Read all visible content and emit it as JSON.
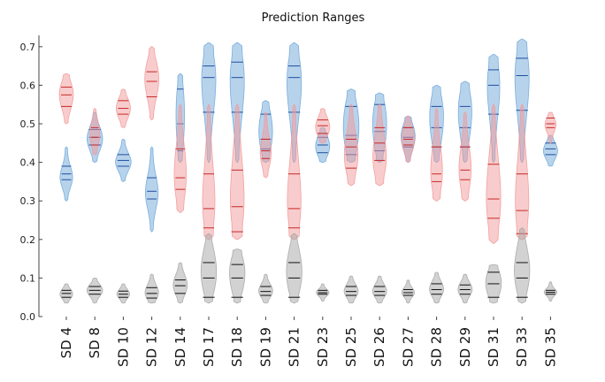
{
  "chart_data": {
    "type": "violin",
    "title": "Prediction Ranges",
    "xlabel": "",
    "ylabel": "",
    "ylim": [
      0,
      0.72
    ],
    "yticks": [
      "0.0",
      "0.1",
      "0.2",
      "0.3",
      "0.4",
      "0.5",
      "0.6",
      "0.7"
    ],
    "categories": [
      "SD 4",
      "SD 8",
      "SD 10",
      "SD 12",
      "SD 14",
      "SD 17",
      "SD 18",
      "SD 19",
      "SD 21",
      "SD 23",
      "SD 25",
      "SD 26",
      "SD 27",
      "SD 28",
      "SD 29",
      "SD 31",
      "SD 33",
      "SD 35"
    ],
    "series": [
      {
        "color": "#6fa8d9",
        "median_color": "#1f4e9e",
        "violins": [
          {
            "min": 0.3,
            "max": 0.44,
            "q1": 0.355,
            "median": 0.37,
            "q3": 0.39,
            "mode": 0.36,
            "width": 0.45
          },
          {
            "min": 0.4,
            "max": 0.53,
            "q1": 0.445,
            "median": 0.465,
            "q3": 0.485,
            "mode": 0.46,
            "width": 0.55
          },
          {
            "min": 0.35,
            "max": 0.46,
            "q1": 0.39,
            "median": 0.405,
            "q3": 0.42,
            "mode": 0.4,
            "width": 0.55
          },
          {
            "min": 0.22,
            "max": 0.44,
            "q1": 0.305,
            "median": 0.325,
            "q3": 0.36,
            "mode": 0.32,
            "width": 0.45
          },
          {
            "min": 0.4,
            "max": 0.63,
            "q1": 0.43,
            "median": 0.5,
            "q3": 0.59,
            "mode": 0.53,
            "width": 0.3
          },
          {
            "min": 0.4,
            "max": 0.71,
            "q1": 0.53,
            "median": 0.62,
            "q3": 0.65,
            "mode": 0.64,
            "width": 0.55
          },
          {
            "min": 0.4,
            "max": 0.71,
            "q1": 0.53,
            "median": 0.62,
            "q3": 0.66,
            "mode": 0.64,
            "width": 0.55
          },
          {
            "min": 0.4,
            "max": 0.56,
            "q1": 0.435,
            "median": 0.46,
            "q3": 0.525,
            "mode": 0.48,
            "width": 0.48
          },
          {
            "min": 0.4,
            "max": 0.71,
            "q1": 0.53,
            "median": 0.62,
            "q3": 0.65,
            "mode": 0.63,
            "width": 0.55
          },
          {
            "min": 0.4,
            "max": 0.49,
            "q1": 0.425,
            "median": 0.445,
            "q3": 0.465,
            "mode": 0.44,
            "width": 0.5
          },
          {
            "min": 0.4,
            "max": 0.59,
            "q1": 0.42,
            "median": 0.47,
            "q3": 0.545,
            "mode": 0.49,
            "width": 0.55
          },
          {
            "min": 0.4,
            "max": 0.58,
            "q1": 0.43,
            "median": 0.48,
            "q3": 0.55,
            "mode": 0.51,
            "width": 0.5
          },
          {
            "min": 0.4,
            "max": 0.52,
            "q1": 0.44,
            "median": 0.465,
            "q3": 0.49,
            "mode": 0.47,
            "width": 0.5
          },
          {
            "min": 0.4,
            "max": 0.6,
            "q1": 0.44,
            "median": 0.49,
            "q3": 0.545,
            "mode": 0.53,
            "width": 0.5
          },
          {
            "min": 0.4,
            "max": 0.61,
            "q1": 0.44,
            "median": 0.49,
            "q3": 0.545,
            "mode": 0.55,
            "width": 0.5
          },
          {
            "min": 0.4,
            "max": 0.68,
            "q1": 0.525,
            "median": 0.6,
            "q3": 0.64,
            "mode": 0.63,
            "width": 0.5
          },
          {
            "min": 0.4,
            "max": 0.72,
            "q1": 0.535,
            "median": 0.625,
            "q3": 0.67,
            "mode": 0.65,
            "width": 0.55
          },
          {
            "min": 0.39,
            "max": 0.47,
            "q1": 0.42,
            "median": 0.435,
            "q3": 0.45,
            "mode": 0.43,
            "width": 0.5
          }
        ]
      },
      {
        "color": "#f29a9a",
        "median_color": "#c62828",
        "violins": [
          {
            "min": 0.5,
            "max": 0.63,
            "q1": 0.545,
            "median": 0.575,
            "q3": 0.595,
            "mode": 0.58,
            "width": 0.5
          },
          {
            "min": 0.42,
            "max": 0.54,
            "q1": 0.445,
            "median": 0.465,
            "q3": 0.49,
            "mode": 0.47,
            "width": 0.35
          },
          {
            "min": 0.49,
            "max": 0.59,
            "q1": 0.525,
            "median": 0.54,
            "q3": 0.56,
            "mode": 0.54,
            "width": 0.5
          },
          {
            "min": 0.51,
            "max": 0.7,
            "q1": 0.57,
            "median": 0.61,
            "q3": 0.635,
            "mode": 0.62,
            "width": 0.5
          },
          {
            "min": 0.27,
            "max": 0.55,
            "q1": 0.33,
            "median": 0.36,
            "q3": 0.435,
            "mode": 0.35,
            "width": 0.45
          },
          {
            "min": 0.2,
            "max": 0.55,
            "q1": 0.23,
            "median": 0.28,
            "q3": 0.37,
            "mode": 0.26,
            "width": 0.5
          },
          {
            "min": 0.2,
            "max": 0.55,
            "q1": 0.22,
            "median": 0.285,
            "q3": 0.38,
            "mode": 0.26,
            "width": 0.55
          },
          {
            "min": 0.36,
            "max": 0.53,
            "q1": 0.41,
            "median": 0.43,
            "q3": 0.46,
            "mode": 0.42,
            "width": 0.4
          },
          {
            "min": 0.2,
            "max": 0.55,
            "q1": 0.23,
            "median": 0.28,
            "q3": 0.37,
            "mode": 0.26,
            "width": 0.55
          },
          {
            "min": 0.45,
            "max": 0.54,
            "q1": 0.475,
            "median": 0.495,
            "q3": 0.51,
            "mode": 0.49,
            "width": 0.5
          },
          {
            "min": 0.34,
            "max": 0.55,
            "q1": 0.385,
            "median": 0.44,
            "q3": 0.46,
            "mode": 0.41,
            "width": 0.5
          },
          {
            "min": 0.34,
            "max": 0.55,
            "q1": 0.405,
            "median": 0.45,
            "q3": 0.49,
            "mode": 0.4,
            "width": 0.5
          },
          {
            "min": 0.4,
            "max": 0.52,
            "q1": 0.445,
            "median": 0.46,
            "q3": 0.49,
            "mode": 0.46,
            "width": 0.45
          },
          {
            "min": 0.3,
            "max": 0.54,
            "q1": 0.35,
            "median": 0.37,
            "q3": 0.44,
            "mode": 0.36,
            "width": 0.45
          },
          {
            "min": 0.3,
            "max": 0.53,
            "q1": 0.355,
            "median": 0.38,
            "q3": 0.44,
            "mode": 0.37,
            "width": 0.45
          },
          {
            "min": 0.19,
            "max": 0.55,
            "q1": 0.255,
            "median": 0.305,
            "q3": 0.395,
            "mode": 0.28,
            "width": 0.55
          },
          {
            "min": 0.2,
            "max": 0.55,
            "q1": 0.215,
            "median": 0.275,
            "q3": 0.37,
            "mode": 0.25,
            "width": 0.55
          },
          {
            "min": 0.45,
            "max": 0.53,
            "q1": 0.49,
            "median": 0.5,
            "q3": 0.515,
            "mode": 0.5,
            "width": 0.4
          }
        ]
      },
      {
        "color": "#a6a6a6",
        "median_color": "#111111",
        "violins": [
          {
            "min": 0.035,
            "max": 0.085,
            "q1": 0.05,
            "median": 0.06,
            "q3": 0.068,
            "mode": 0.058,
            "width": 0.45
          },
          {
            "min": 0.035,
            "max": 0.1,
            "q1": 0.058,
            "median": 0.068,
            "q3": 0.078,
            "mode": 0.068,
            "width": 0.55
          },
          {
            "min": 0.035,
            "max": 0.085,
            "q1": 0.05,
            "median": 0.058,
            "q3": 0.066,
            "mode": 0.058,
            "width": 0.45
          },
          {
            "min": 0.035,
            "max": 0.11,
            "q1": 0.048,
            "median": 0.06,
            "q3": 0.075,
            "mode": 0.058,
            "width": 0.5
          },
          {
            "min": 0.035,
            "max": 0.14,
            "q1": 0.06,
            "median": 0.08,
            "q3": 0.095,
            "mode": 0.08,
            "width": 0.5
          },
          {
            "min": 0.035,
            "max": 0.215,
            "q1": 0.05,
            "median": 0.1,
            "q3": 0.14,
            "mode": 0.11,
            "width": 0.55
          },
          {
            "min": 0.035,
            "max": 0.175,
            "q1": 0.05,
            "median": 0.1,
            "q3": 0.135,
            "mode": 0.12,
            "width": 0.55
          },
          {
            "min": 0.035,
            "max": 0.11,
            "q1": 0.055,
            "median": 0.065,
            "q3": 0.078,
            "mode": 0.065,
            "width": 0.5
          },
          {
            "min": 0.035,
            "max": 0.215,
            "q1": 0.05,
            "median": 0.1,
            "q3": 0.14,
            "mode": 0.11,
            "width": 0.55
          },
          {
            "min": 0.04,
            "max": 0.085,
            "q1": 0.058,
            "median": 0.062,
            "q3": 0.068,
            "mode": 0.062,
            "width": 0.45
          },
          {
            "min": 0.035,
            "max": 0.105,
            "q1": 0.055,
            "median": 0.065,
            "q3": 0.078,
            "mode": 0.065,
            "width": 0.5
          },
          {
            "min": 0.035,
            "max": 0.105,
            "q1": 0.055,
            "median": 0.065,
            "q3": 0.078,
            "mode": 0.065,
            "width": 0.5
          },
          {
            "min": 0.035,
            "max": 0.095,
            "q1": 0.055,
            "median": 0.062,
            "q3": 0.07,
            "mode": 0.062,
            "width": 0.45
          },
          {
            "min": 0.035,
            "max": 0.115,
            "q1": 0.058,
            "median": 0.07,
            "q3": 0.085,
            "mode": 0.07,
            "width": 0.5
          },
          {
            "min": 0.035,
            "max": 0.11,
            "q1": 0.058,
            "median": 0.07,
            "q3": 0.082,
            "mode": 0.07,
            "width": 0.5
          },
          {
            "min": 0.035,
            "max": 0.135,
            "q1": 0.05,
            "median": 0.085,
            "q3": 0.115,
            "mode": 0.09,
            "width": 0.55
          },
          {
            "min": 0.035,
            "max": 0.23,
            "q1": 0.05,
            "median": 0.1,
            "q3": 0.14,
            "mode": 0.11,
            "width": 0.55
          },
          {
            "min": 0.04,
            "max": 0.09,
            "q1": 0.058,
            "median": 0.063,
            "q3": 0.068,
            "mode": 0.063,
            "width": 0.45
          }
        ]
      }
    ],
    "grid": false,
    "legend": "none"
  }
}
